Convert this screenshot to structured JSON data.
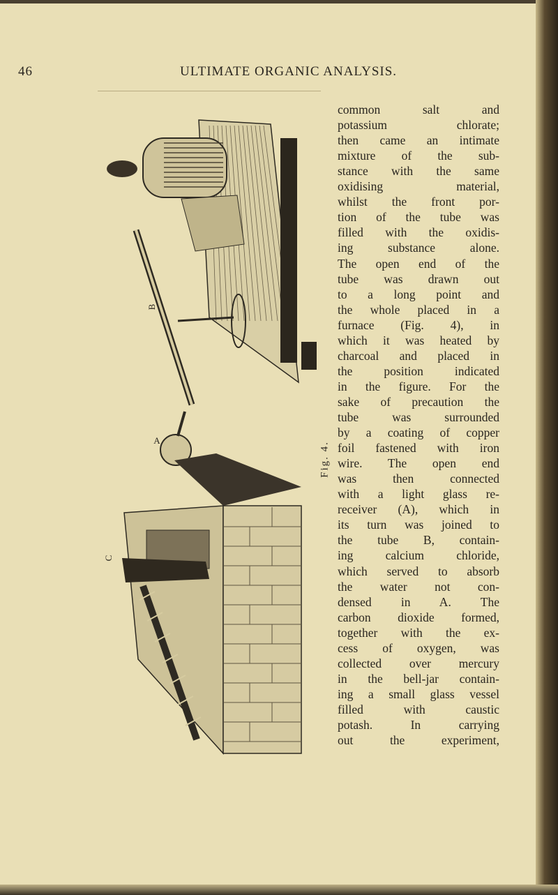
{
  "header": {
    "page_number": "46",
    "title": "ULTIMATE ORGANIC ANALYSIS."
  },
  "figure": {
    "caption": "Fig. 4.",
    "labels": [
      "B",
      "A",
      "C"
    ]
  },
  "body": {
    "lines": [
      "common salt and",
      "potassium chlorate;",
      "then came an intimate",
      "mixture of the sub-",
      "stance with the same",
      "oxidising material,",
      "whilst the front por-",
      "tion of the tube was",
      "filled with the oxidis-",
      "ing substance alone.",
      "The open end of the",
      "tube was drawn out",
      "to a long point and",
      "the whole placed in a",
      "furnace (Fig. 4), in",
      "which it was heated by",
      "charcoal and placed in",
      "the position indicated",
      "in the figure. For the",
      "sake of precaution the",
      "tube was surrounded",
      "by a coating of copper",
      "foil fastened with iron",
      "wire. The open end",
      "was then connected",
      "with a light glass re-",
      "receiver (A), which in",
      "its turn was joined to",
      "the tube B, contain-",
      "ing calcium chloride,",
      "which served to absorb",
      "the water not con-",
      "densed in A. The",
      "carbon dioxide formed,",
      "together with the ex-",
      "cess of oxygen, was",
      "collected over mercury",
      "in the bell-jar contain-",
      "ing a small glass vessel",
      "filled with caustic",
      "potash. In carrying",
      "out the experiment,"
    ]
  }
}
